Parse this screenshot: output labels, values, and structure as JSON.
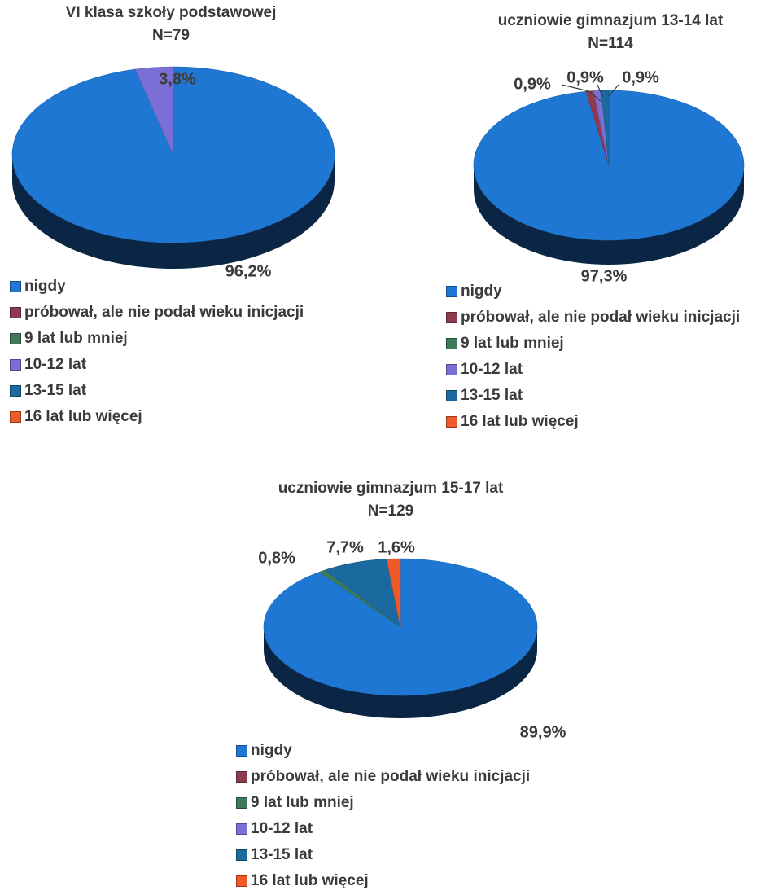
{
  "chart_data": [
    {
      "type": "pie",
      "title": "VI klasa szkoły podstawowej",
      "subtitle": "N=79",
      "categories": [
        "nigdy",
        "próbował, ale nie podał wieku inicjacji",
        "9 lat lub mniej",
        "10-12 lat",
        "13-15 lat",
        "16 lat lub więcej"
      ],
      "values": [
        96.2,
        0,
        0,
        3.8,
        0,
        0
      ],
      "data_labels": [
        {
          "category": "nigdy",
          "text": "96,2%"
        },
        {
          "category": "10-12 lat",
          "text": "3,8%"
        }
      ],
      "legend_position": "bottom-left",
      "style": "3d"
    },
    {
      "type": "pie",
      "title": "uczniowie gimnazjum 13-14 lat",
      "subtitle": "N=114",
      "categories": [
        "nigdy",
        "próbował, ale nie podał wieku inicjacji",
        "9 lat lub mniej",
        "10-12 lat",
        "13-15 lat",
        "16 lat lub więcej"
      ],
      "values": [
        97.3,
        0.9,
        0,
        0.9,
        0.9,
        0
      ],
      "data_labels": [
        {
          "category": "nigdy",
          "text": "97,3%"
        },
        {
          "category": "próbował, ale nie podał wieku inicjacji",
          "text": "0,9%"
        },
        {
          "category": "10-12 lat",
          "text": "0,9%"
        },
        {
          "category": "13-15 lat",
          "text": "0,9%"
        }
      ],
      "legend_position": "bottom-left",
      "style": "3d"
    },
    {
      "type": "pie",
      "title": "uczniowie gimnazjum 15-17 lat",
      "subtitle": "N=129",
      "categories": [
        "nigdy",
        "próbował, ale nie podał wieku inicjacji",
        "9 lat lub mniej",
        "10-12 lat",
        "13-15 lat",
        "16 lat lub więcej"
      ],
      "values": [
        89.9,
        0,
        0.8,
        0,
        7.7,
        1.6
      ],
      "data_labels": [
        {
          "category": "nigdy",
          "text": "89,9%"
        },
        {
          "category": "9 lat lub mniej",
          "text": "0,8%"
        },
        {
          "category": "13-15 lat",
          "text": "7,7%"
        },
        {
          "category": "16 lat lub więcej",
          "text": "1,6%"
        }
      ],
      "legend_position": "bottom-left",
      "style": "3d"
    }
  ],
  "colors": {
    "nigdy": "#1f77d4",
    "próbował, ale nie podał wieku inicjacji": "#8e3b4f",
    "9 lat lub mniej": "#3e7a5a",
    "10-12 lat": "#7a6fd6",
    "13-15 lat": "#1a6aa0",
    "16 lat lub więcej": "#ef5a28"
  }
}
